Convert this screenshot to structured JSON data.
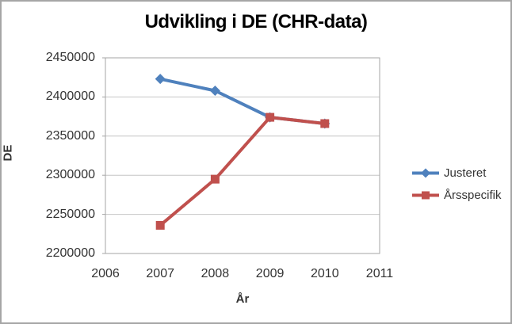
{
  "window": {
    "background": "#FFFFFF",
    "frame_border_color": "#A6A6A6"
  },
  "colors": {
    "gridline": "#C6C6C6",
    "axis": "#A6A6A6",
    "tick_text": "#333333",
    "title_text": "#000000",
    "series_blue": "#4F81BD",
    "series_red": "#C0504D"
  },
  "chart_data": {
    "type": "line",
    "title": "Udvikling i DE (CHR-data)",
    "xlabel": "År",
    "ylabel": "DE",
    "xlim": [
      2006,
      2011
    ],
    "ylim": [
      2200000,
      2450000
    ],
    "x_ticks": [
      2006,
      2007,
      2008,
      2009,
      2010,
      2011
    ],
    "y_ticks": [
      2200000,
      2250000,
      2300000,
      2350000,
      2400000,
      2450000
    ],
    "grid": "horizontal",
    "legend_position": "right",
    "x": [
      2007,
      2008,
      2009,
      2010
    ],
    "series": [
      {
        "name": "Justeret",
        "color": "#4F81BD",
        "marker": "diamond",
        "values": [
          2423000,
          2408000,
          2374000,
          2366000
        ]
      },
      {
        "name": "Årsspecifik",
        "color": "#C0504D",
        "marker": "square",
        "values": [
          2236000,
          2295000,
          2374000,
          2366000
        ]
      }
    ]
  }
}
